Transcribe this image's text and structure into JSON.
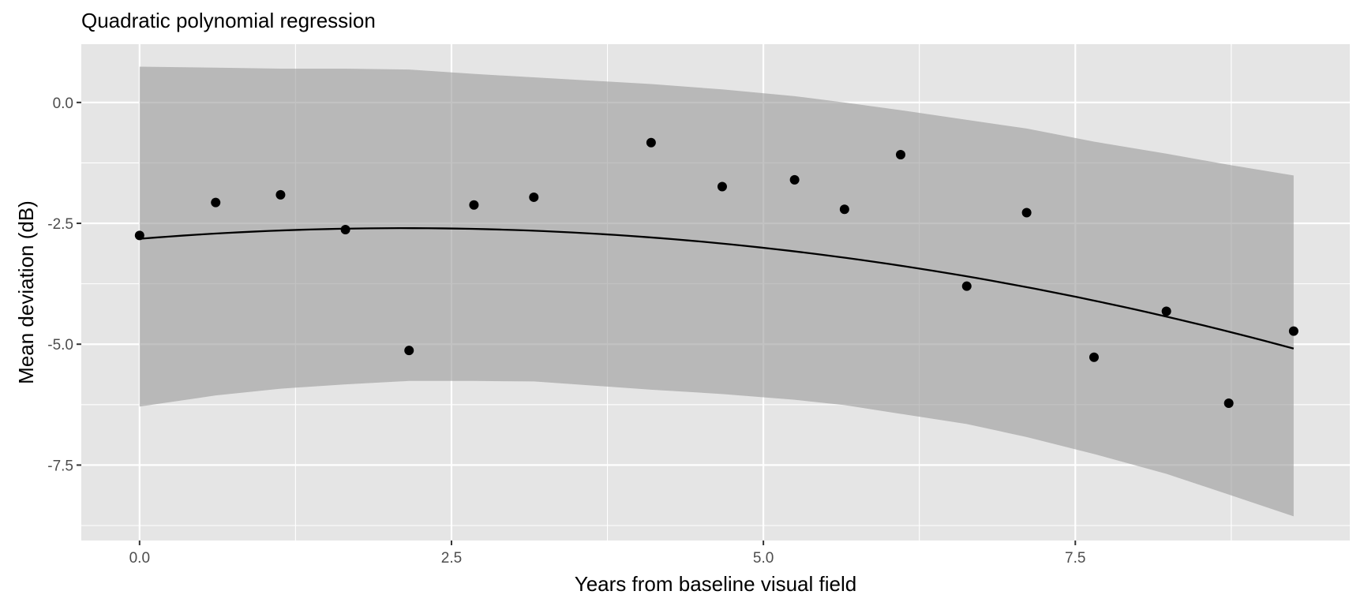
{
  "chart_data": {
    "type": "scatter",
    "title": "Quadratic polynomial regression",
    "xlabel": "Years from baseline visual field",
    "ylabel": "Mean deviation (dB)",
    "xlim": [
      -0.467,
      9.7
    ],
    "ylim": [
      -9.06,
      1.205
    ],
    "grid": true,
    "legend": "none",
    "x_ticks": [
      0.0,
      2.5,
      5.0,
      7.5
    ],
    "x_tick_labels": [
      "0.0",
      "2.5",
      "5.0",
      "7.5"
    ],
    "y_ticks": [
      0.0,
      -2.5,
      -5.0,
      -7.5
    ],
    "y_tick_labels": [
      "0.0",
      "-2.5",
      "-5.0",
      "-7.5"
    ],
    "points": {
      "x": [
        0.0,
        0.61,
        1.13,
        1.65,
        2.16,
        2.68,
        3.16,
        4.1,
        4.67,
        5.25,
        5.65,
        6.1,
        6.63,
        7.11,
        7.65,
        8.23,
        8.73,
        9.25
      ],
      "y": [
        -2.75,
        -2.07,
        -1.91,
        -2.63,
        -5.13,
        -2.12,
        -1.96,
        -0.83,
        -1.74,
        -1.6,
        -2.21,
        -1.08,
        -3.8,
        -2.28,
        -5.27,
        -4.32,
        -6.22,
        -4.73
      ]
    },
    "fit": {
      "model": "quadratic",
      "coefficients": {
        "intercept": -2.82,
        "linear": 0.2077,
        "quadratic": -0.04899
      }
    },
    "confidence_band": {
      "x": [
        0.0,
        0.61,
        1.13,
        1.65,
        2.16,
        2.68,
        3.16,
        4.1,
        4.67,
        5.25,
        5.65,
        6.1,
        6.63,
        7.11,
        7.65,
        8.23,
        8.73,
        9.25
      ],
      "upper": [
        0.74,
        0.72,
        0.7,
        0.7,
        0.68,
        0.59,
        0.52,
        0.38,
        0.27,
        0.13,
        0.0,
        -0.16,
        -0.36,
        -0.54,
        -0.81,
        -1.06,
        -1.29,
        -1.51
      ],
      "lower": [
        -6.29,
        -6.06,
        -5.92,
        -5.83,
        -5.76,
        -5.76,
        -5.77,
        -5.94,
        -6.03,
        -6.15,
        -6.26,
        -6.44,
        -6.65,
        -6.92,
        -7.27,
        -7.68,
        -8.11,
        -8.56
      ]
    },
    "colors": {
      "panel_background": "#e5e5e5",
      "grid_major": "#ffffff",
      "band": "#999999",
      "points": "#000000",
      "fit_line": "#000000"
    }
  }
}
